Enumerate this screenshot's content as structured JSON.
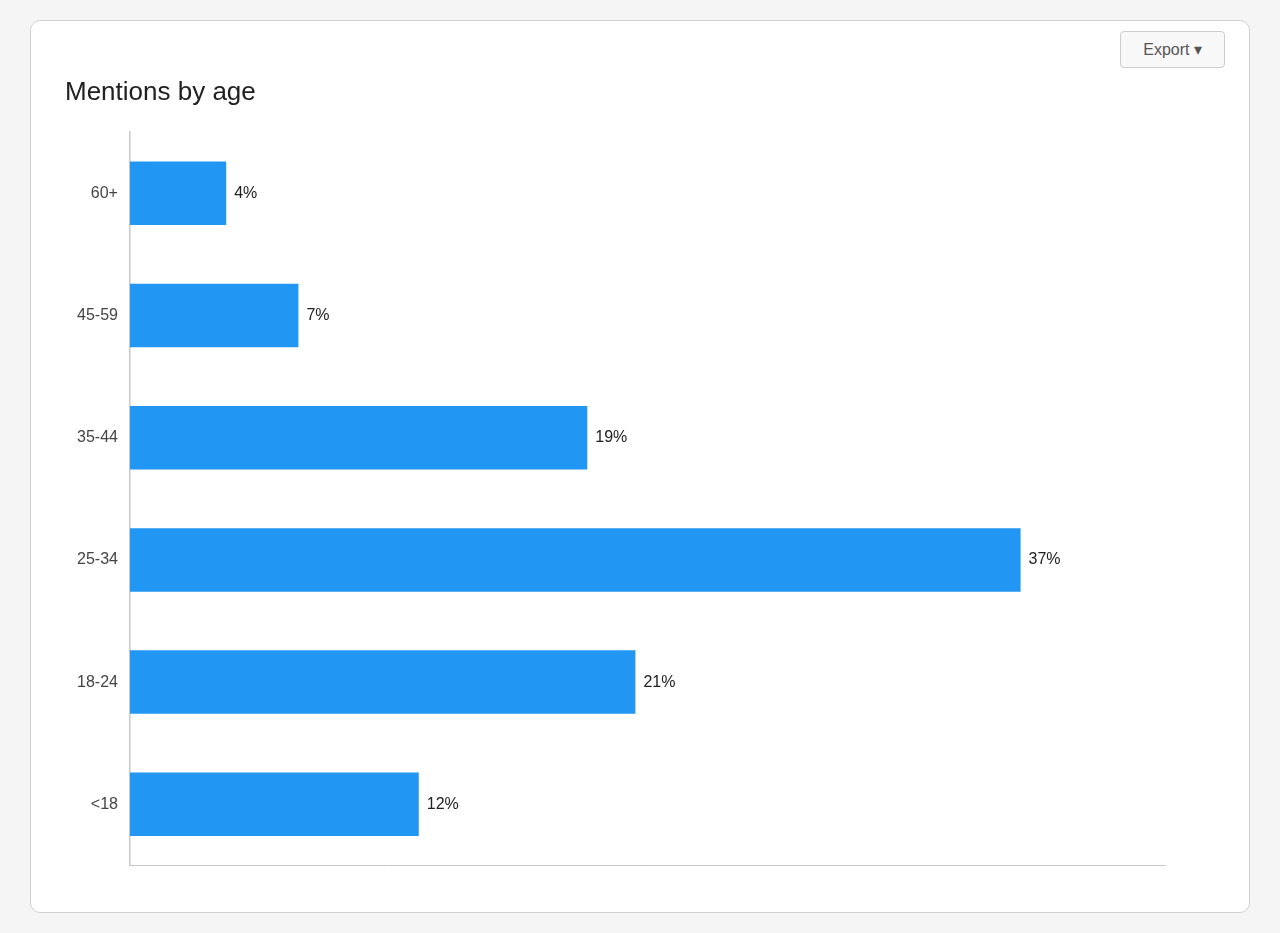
{
  "chart_data": {
    "type": "bar",
    "orientation": "horizontal",
    "title": "Mentions by age",
    "categories": [
      "<18",
      "18-24",
      "25-34",
      "35-44",
      "45-59",
      "60+"
    ],
    "values": [
      12,
      21,
      37,
      19,
      7,
      4
    ],
    "value_labels": [
      "12%",
      "21%",
      "37%",
      "19%",
      "7%",
      "4%"
    ],
    "data_labels": true,
    "color": "#2196F3",
    "xlim": [
      0,
      43
    ],
    "tick_labels": "y",
    "grid": false,
    "annotations": [
      "Export ▾"
    ]
  }
}
